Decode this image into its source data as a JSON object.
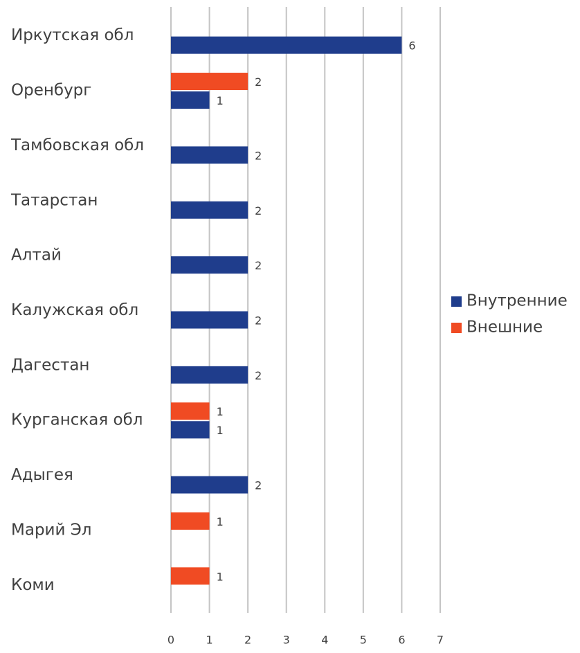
{
  "chart_data": {
    "type": "bar",
    "orientation": "horizontal",
    "categories": [
      "Иркутская обл",
      "Оренбург",
      "Тамбовская обл",
      "Татарстан",
      "Алтай",
      "Калужская обл",
      "Дагестан",
      "Курганская обл",
      "Адыгея",
      "Марий Эл",
      "Коми"
    ],
    "series": [
      {
        "name": "Внутренние",
        "color": "#1f3d8c",
        "values": [
          6,
          1,
          2,
          2,
          2,
          2,
          2,
          1,
          2,
          null,
          null
        ]
      },
      {
        "name": "Внешние",
        "color": "#f04b23",
        "values": [
          null,
          2,
          null,
          null,
          null,
          null,
          null,
          1,
          null,
          1,
          1
        ]
      }
    ],
    "xlim": [
      0,
      7
    ],
    "xticks": [
      0,
      1,
      2,
      3,
      4,
      5,
      6,
      7
    ],
    "grid": true,
    "legend": "right",
    "data_labels": true
  }
}
